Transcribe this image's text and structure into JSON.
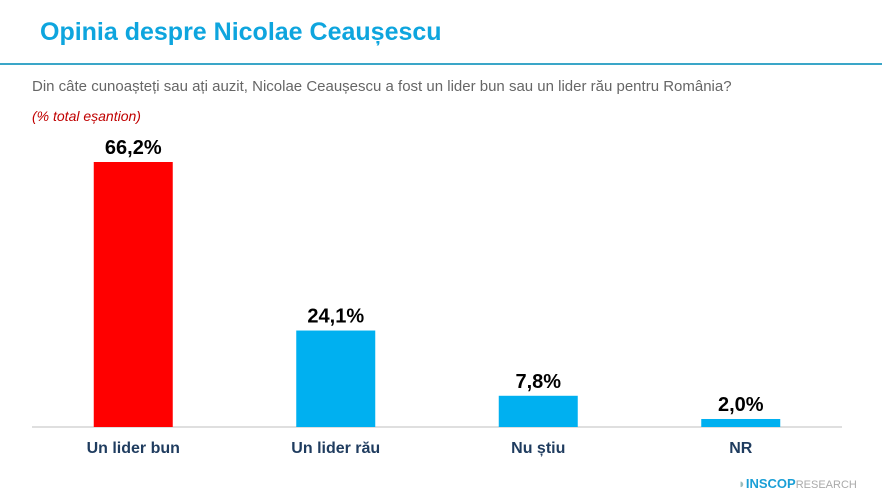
{
  "header": {
    "title": "Opinia despre Nicolae Ceaușescu"
  },
  "question": "Din câte cunoașteți sau ați auzit, Nicolae Ceaușescu a fost un lider bun sau un lider rău pentru România?",
  "subtitle": "(% total eșantion)",
  "logo": {
    "brand": "INSCOP",
    "suffix": "RESEARCH"
  },
  "chart_data": {
    "type": "bar",
    "categories": [
      "Un lider bun",
      "Un lider rău",
      "Nu știu",
      "NR"
    ],
    "values": [
      66.2,
      24.1,
      7.8,
      2.0
    ],
    "labels": [
      "66,2%",
      "24,1%",
      "7,8%",
      "2,0%"
    ],
    "colors": [
      "#ff0000",
      "#00b0f0",
      "#00b0f0",
      "#00b0f0"
    ],
    "ylim": [
      0,
      70
    ],
    "grid": false
  }
}
